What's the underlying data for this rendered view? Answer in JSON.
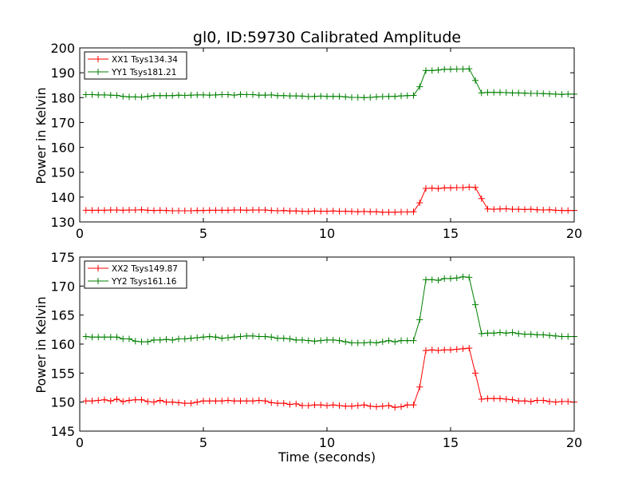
{
  "chart_data": [
    {
      "type": "line",
      "title": "gl0, ID:59730 Calibrated Amplitude",
      "xlabel": "",
      "ylabel": "Power in Kelvin",
      "xlim": [
        0,
        20
      ],
      "ylim": [
        130,
        200
      ],
      "xticks": [
        0,
        5,
        10,
        15,
        20
      ],
      "yticks": [
        130,
        140,
        150,
        160,
        170,
        180,
        190,
        200
      ],
      "legend_position": "top-left",
      "marker": "+",
      "series": [
        {
          "name": "XX1 Tsys134.34",
          "color": "#ff0000",
          "x": [
            0.25,
            0.5,
            0.75,
            1.0,
            1.25,
            1.5,
            1.75,
            2.0,
            2.25,
            2.5,
            2.75,
            3.0,
            3.25,
            3.5,
            3.75,
            4.0,
            4.25,
            4.5,
            4.75,
            5.0,
            5.25,
            5.5,
            5.75,
            6.0,
            6.25,
            6.5,
            6.75,
            7.0,
            7.25,
            7.5,
            7.75,
            8.0,
            8.25,
            8.5,
            8.75,
            9.0,
            9.25,
            9.5,
            9.75,
            10.0,
            10.25,
            10.5,
            10.75,
            11.0,
            11.25,
            11.5,
            11.75,
            12.0,
            12.25,
            12.5,
            12.75,
            13.0,
            13.25,
            13.5,
            13.75,
            14.0,
            14.25,
            14.5,
            14.75,
            15.0,
            15.25,
            15.5,
            15.75,
            16.0,
            16.25,
            16.5,
            16.75,
            17.0,
            17.25,
            17.5,
            17.75,
            18.0,
            18.25,
            18.5,
            18.75,
            19.0,
            19.25,
            19.5,
            19.75,
            20.0
          ],
          "y": [
            134.7,
            134.7,
            134.7,
            134.7,
            134.8,
            134.8,
            134.7,
            134.8,
            134.8,
            134.9,
            134.7,
            134.6,
            134.7,
            134.6,
            134.5,
            134.5,
            134.5,
            134.5,
            134.6,
            134.6,
            134.7,
            134.7,
            134.7,
            134.7,
            134.8,
            134.8,
            134.7,
            134.8,
            134.8,
            134.8,
            134.6,
            134.5,
            134.6,
            134.4,
            134.4,
            134.3,
            134.2,
            134.4,
            134.3,
            134.3,
            134.4,
            134.3,
            134.3,
            134.2,
            134.1,
            134.2,
            134.1,
            134.1,
            133.9,
            133.9,
            133.9,
            134.0,
            134.0,
            134.1,
            137.7,
            143.5,
            143.6,
            143.4,
            143.7,
            143.7,
            143.8,
            143.8,
            144.0,
            143.9,
            139.4,
            135.2,
            135.1,
            135.2,
            135.3,
            135.1,
            135.1,
            135.0,
            135.1,
            134.9,
            134.8,
            134.9,
            134.7,
            134.6,
            134.6,
            134.6
          ]
        },
        {
          "name": "YY1 Tsys181.21",
          "color": "#008000",
          "x": [
            0.25,
            0.5,
            0.75,
            1.0,
            1.25,
            1.5,
            1.75,
            2.0,
            2.25,
            2.5,
            2.75,
            3.0,
            3.25,
            3.5,
            3.75,
            4.0,
            4.25,
            4.5,
            4.75,
            5.0,
            5.25,
            5.5,
            5.75,
            6.0,
            6.25,
            6.5,
            6.75,
            7.0,
            7.25,
            7.5,
            7.75,
            8.0,
            8.25,
            8.5,
            8.75,
            9.0,
            9.25,
            9.5,
            9.75,
            10.0,
            10.25,
            10.5,
            10.75,
            11.0,
            11.25,
            11.5,
            11.75,
            12.0,
            12.25,
            12.5,
            12.75,
            13.0,
            13.25,
            13.5,
            13.75,
            14.0,
            14.25,
            14.5,
            14.75,
            15.0,
            15.25,
            15.5,
            15.75,
            16.0,
            16.25,
            16.5,
            16.75,
            17.0,
            17.25,
            17.5,
            17.75,
            18.0,
            18.25,
            18.5,
            18.75,
            19.0,
            19.25,
            19.5,
            19.75,
            20.0
          ],
          "y": [
            181.2,
            181.2,
            181.1,
            181.1,
            181.0,
            180.9,
            180.5,
            180.3,
            180.3,
            180.2,
            180.5,
            180.8,
            180.8,
            180.8,
            180.8,
            181.0,
            180.9,
            181.0,
            181.1,
            181.1,
            181.0,
            181.1,
            181.2,
            181.2,
            181.0,
            181.3,
            181.2,
            181.2,
            181.0,
            181.0,
            181.1,
            180.8,
            180.8,
            180.7,
            180.7,
            180.6,
            180.4,
            180.5,
            180.6,
            180.5,
            180.5,
            180.5,
            180.3,
            180.1,
            180.1,
            180.0,
            180.1,
            180.3,
            180.4,
            180.5,
            180.5,
            180.7,
            180.8,
            180.9,
            184.4,
            190.9,
            190.9,
            191.1,
            191.4,
            191.4,
            191.5,
            191.5,
            191.6,
            186.9,
            181.9,
            182.1,
            182.1,
            182.1,
            182.0,
            181.9,
            181.9,
            181.8,
            181.7,
            181.7,
            181.6,
            181.5,
            181.4,
            181.3,
            181.4,
            181.4
          ]
        }
      ]
    },
    {
      "type": "line",
      "title": "",
      "xlabel": "Time (seconds)",
      "ylabel": "Power in Kelvin",
      "xlim": [
        0,
        20
      ],
      "ylim": [
        145,
        175
      ],
      "xticks": [
        0,
        5,
        10,
        15,
        20
      ],
      "yticks": [
        145,
        150,
        155,
        160,
        165,
        170,
        175
      ],
      "legend_position": "top-left",
      "marker": "+",
      "series": [
        {
          "name": "XX2 Tsys149.87",
          "color": "#ff0000",
          "x": [
            0.25,
            0.5,
            0.75,
            1.0,
            1.25,
            1.5,
            1.75,
            2.0,
            2.25,
            2.5,
            2.75,
            3.0,
            3.25,
            3.5,
            3.75,
            4.0,
            4.25,
            4.5,
            4.75,
            5.0,
            5.25,
            5.5,
            5.75,
            6.0,
            6.25,
            6.5,
            6.75,
            7.0,
            7.25,
            7.5,
            7.75,
            8.0,
            8.25,
            8.5,
            8.75,
            9.0,
            9.25,
            9.5,
            9.75,
            10.0,
            10.25,
            10.5,
            10.75,
            11.0,
            11.25,
            11.5,
            11.75,
            12.0,
            12.25,
            12.5,
            12.75,
            13.0,
            13.25,
            13.5,
            13.75,
            14.0,
            14.25,
            14.5,
            14.75,
            15.0,
            15.25,
            15.5,
            15.75,
            16.0,
            16.25,
            16.5,
            16.75,
            17.0,
            17.25,
            17.5,
            17.75,
            18.0,
            18.25,
            18.5,
            18.75,
            19.0,
            19.25,
            19.5,
            19.75,
            20.0
          ],
          "y": [
            150.2,
            150.2,
            150.3,
            150.4,
            150.2,
            150.5,
            150.1,
            150.3,
            150.4,
            150.4,
            150.1,
            150.0,
            150.3,
            150.0,
            150.0,
            149.9,
            149.8,
            149.8,
            150.0,
            150.2,
            150.2,
            150.2,
            150.2,
            150.3,
            150.2,
            150.2,
            150.2,
            150.2,
            150.3,
            150.2,
            149.9,
            149.8,
            149.8,
            149.6,
            149.7,
            149.4,
            149.4,
            149.5,
            149.5,
            149.4,
            149.5,
            149.4,
            149.3,
            149.3,
            149.4,
            149.5,
            149.3,
            149.2,
            149.3,
            149.4,
            149.1,
            149.2,
            149.5,
            149.5,
            152.6,
            158.9,
            159.0,
            158.9,
            159.0,
            159.0,
            159.1,
            159.2,
            159.3,
            155.0,
            150.5,
            150.6,
            150.6,
            150.6,
            150.5,
            150.4,
            150.2,
            150.2,
            150.1,
            150.3,
            150.3,
            150.1,
            150.0,
            150.1,
            150.1,
            150.0
          ]
        },
        {
          "name": "YY2 Tsys161.16",
          "color": "#008000",
          "x": [
            0.25,
            0.5,
            0.75,
            1.0,
            1.25,
            1.5,
            1.75,
            2.0,
            2.25,
            2.5,
            2.75,
            3.0,
            3.25,
            3.5,
            3.75,
            4.0,
            4.25,
            4.5,
            4.75,
            5.0,
            5.25,
            5.5,
            5.75,
            6.0,
            6.25,
            6.5,
            6.75,
            7.0,
            7.25,
            7.5,
            7.75,
            8.0,
            8.25,
            8.5,
            8.75,
            9.0,
            9.25,
            9.5,
            9.75,
            10.0,
            10.25,
            10.5,
            10.75,
            11.0,
            11.25,
            11.5,
            11.75,
            12.0,
            12.25,
            12.5,
            12.75,
            13.0,
            13.25,
            13.5,
            13.75,
            14.0,
            14.25,
            14.5,
            14.75,
            15.0,
            15.25,
            15.5,
            15.75,
            16.0,
            16.25,
            16.5,
            16.75,
            17.0,
            17.25,
            17.5,
            17.75,
            18.0,
            18.25,
            18.5,
            18.75,
            19.0,
            19.25,
            19.5,
            19.75,
            20.0
          ],
          "y": [
            161.3,
            161.2,
            161.2,
            161.2,
            161.2,
            161.2,
            160.9,
            160.9,
            160.5,
            160.4,
            160.4,
            160.7,
            160.7,
            160.8,
            160.7,
            160.9,
            160.9,
            161.0,
            161.1,
            161.2,
            161.3,
            161.2,
            161.0,
            161.1,
            161.2,
            161.3,
            161.4,
            161.4,
            161.3,
            161.3,
            161.2,
            161.0,
            161.0,
            160.9,
            160.7,
            160.7,
            160.6,
            160.5,
            160.6,
            160.7,
            160.7,
            160.6,
            160.4,
            160.2,
            160.2,
            160.2,
            160.3,
            160.2,
            160.4,
            160.6,
            160.4,
            160.6,
            160.6,
            160.6,
            164.2,
            171.1,
            171.1,
            171.0,
            171.3,
            171.3,
            171.4,
            171.6,
            171.5,
            166.8,
            161.8,
            161.9,
            161.9,
            162.0,
            161.9,
            162.0,
            161.8,
            161.7,
            161.7,
            161.6,
            161.6,
            161.5,
            161.4,
            161.3,
            161.3,
            161.3
          ]
        }
      ]
    }
  ]
}
